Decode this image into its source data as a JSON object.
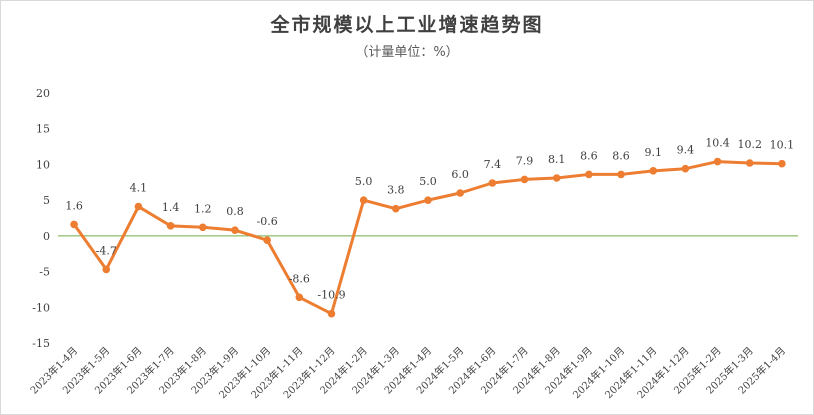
{
  "chart_data": {
    "type": "line",
    "title": "全市规模以上工业增速趋势图",
    "subtitle": "（计量单位：%）",
    "xlabel": "",
    "ylabel": "",
    "ylim": [
      -15,
      20
    ],
    "yticks": [
      20,
      15,
      10,
      5,
      0,
      -5,
      -10,
      -15
    ],
    "grid": false,
    "legend": "none",
    "line_color": "#ed7d31",
    "zero_line_color": "#70ad47",
    "categories": [
      "2023年1-4月",
      "2023年1-5月",
      "2023年1-6月",
      "2023年1-7月",
      "2023年1-8月",
      "2023年1-9月",
      "2023年1-10月",
      "2023年1-11月",
      "2023年1-12月",
      "2024年1-2月",
      "2024年1-3月",
      "2024年1-4月",
      "2024年1-5月",
      "2024年1-6月",
      "2024年1-7月",
      "2024年1-8月",
      "2024年1-9月",
      "2024年1-10月",
      "2024年1-11月",
      "2024年1-12月",
      "2025年1-2月",
      "2025年1-3月",
      "2025年1-4月"
    ],
    "values": [
      1.6,
      -4.7,
      4.1,
      1.4,
      1.2,
      0.8,
      -0.6,
      -8.6,
      -10.9,
      5.0,
      3.8,
      5.0,
      6.0,
      7.4,
      7.9,
      8.1,
      8.6,
      8.6,
      9.1,
      9.4,
      10.4,
      10.2,
      10.1
    ],
    "data_labels": [
      "1.6",
      "-4.7",
      "4.1",
      "1.4",
      "1.2",
      "0.8",
      "-0.6",
      "-8.6",
      "-10.9",
      "5.0",
      "3.8",
      "5.0",
      "6.0",
      "7.4",
      "7.9",
      "8.1",
      "8.6",
      "8.6",
      "9.1",
      "9.4",
      "10.4",
      "10.2",
      "10.1"
    ]
  }
}
